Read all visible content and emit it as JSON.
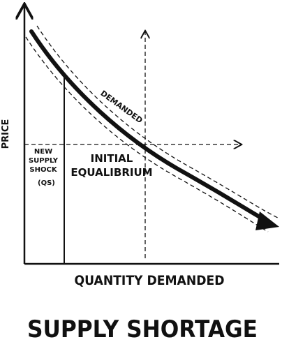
{
  "axes": {
    "y_label": "PRICE",
    "x_label": "QUANTITY DEMANDED"
  },
  "curve": {
    "label": "DEMANDED"
  },
  "annotations": {
    "supply_shock": [
      "NEW",
      "SUPPLY",
      "SHOCK",
      "(QS)"
    ],
    "equilibrium": [
      "INITIAL",
      "EQUALIBRIUM"
    ]
  },
  "title": "SUPPLY SHORTAGE"
}
